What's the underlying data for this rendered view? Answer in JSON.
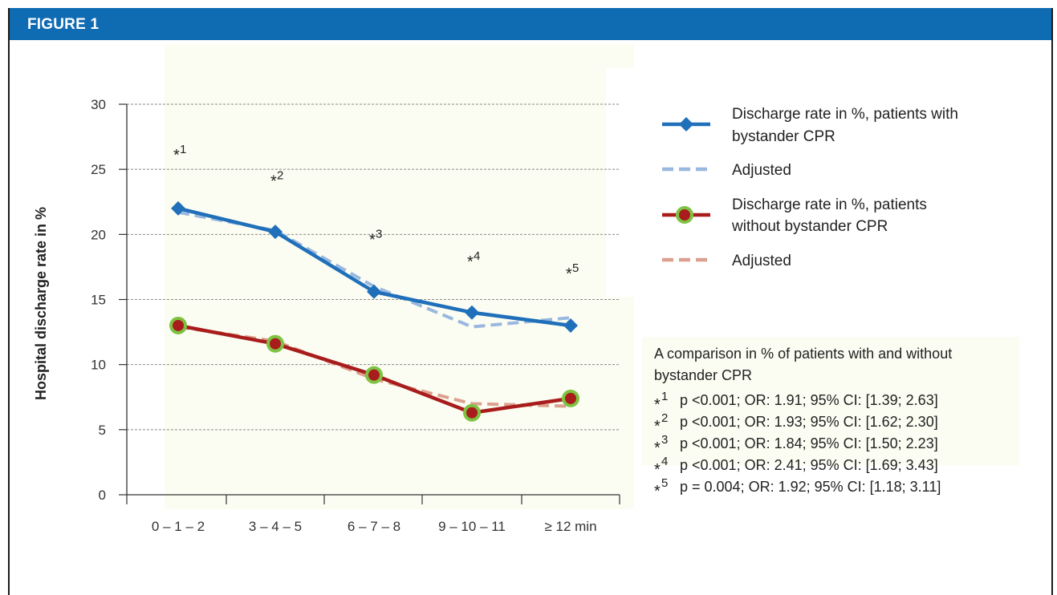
{
  "figure_label": "FIGURE 1",
  "chart_data": {
    "type": "line",
    "title": "",
    "xlabel": "",
    "ylabel": "Hospital discharge rate in %",
    "ylim": [
      0,
      30
    ],
    "yticks": [
      0,
      5,
      10,
      15,
      20,
      25,
      30
    ],
    "grid": true,
    "categories": [
      "0 – 1 – 2",
      "3 – 4 – 5",
      "6 – 7 – 8",
      "9 – 10 – 11",
      "≥ 12 min"
    ],
    "series": [
      {
        "name": "Discharge rate in %, patients with bystander CPR",
        "legend_lines": [
          "Discharge rate in %, patients with",
          "bystander CPR"
        ],
        "values": [
          22.0,
          20.2,
          15.6,
          14.0,
          13.0
        ],
        "color": "#1f6fba",
        "marker": "diamond",
        "style": "solid"
      },
      {
        "name": "Adjusted",
        "legend_lines": [
          "Adjusted"
        ],
        "values": [
          21.7,
          20.3,
          16.0,
          12.9,
          13.6
        ],
        "color": "#9ab8df",
        "marker": "none",
        "style": "dashed"
      },
      {
        "name": "Discharge rate in %, patients without bystander CPR",
        "legend_lines": [
          "Discharge rate in %, patients",
          "without bystander CPR"
        ],
        "values": [
          13.0,
          11.6,
          9.2,
          6.3,
          7.4
        ],
        "color": "#a81c1c",
        "marker": "circle",
        "marker_ring": "#7ec242",
        "style": "solid"
      },
      {
        "name": "Adjusted",
        "legend_lines": [
          "Adjusted"
        ],
        "values": [
          12.9,
          11.8,
          8.9,
          7.0,
          6.8
        ],
        "color": "#dba08f",
        "marker": "none",
        "style": "dashed"
      }
    ],
    "significance_markers": [
      {
        "symbol": "*",
        "label": "1",
        "category_index": 0,
        "value": 26.3
      },
      {
        "symbol": "*",
        "label": "2",
        "category_index": 1,
        "value": 24.3
      },
      {
        "symbol": "*",
        "label": "3",
        "category_index": 2,
        "value": 19.8
      },
      {
        "symbol": "*",
        "label": "4",
        "category_index": 3,
        "value": 18.1
      },
      {
        "symbol": "*",
        "label": "5",
        "category_index": 4,
        "value": 17.2
      }
    ],
    "annotation": {
      "title_lines": [
        "A comparison in % of patients with and without",
        "bystander CPR"
      ],
      "rows": [
        {
          "marker": "*",
          "label": "1",
          "text": "p <0.001; OR: 1.91; 95% CI: [1.39; 2.63]"
        },
        {
          "marker": "*",
          "label": "2",
          "text": "p <0.001; OR: 1.93; 95% CI: [1.62; 2.30]"
        },
        {
          "marker": "*",
          "label": "3",
          "text": "p <0.001; OR: 1.84; 95% CI: [1.50; 2.23]"
        },
        {
          "marker": "*",
          "label": "4",
          "text": "p <0.001; OR: 2.41; 95% CI: [1.69; 3.43]"
        },
        {
          "marker": "*",
          "label": "5",
          "text": "p = 0.004; OR: 1.92; 95% CI: [1.18; 3.11]"
        }
      ]
    }
  }
}
